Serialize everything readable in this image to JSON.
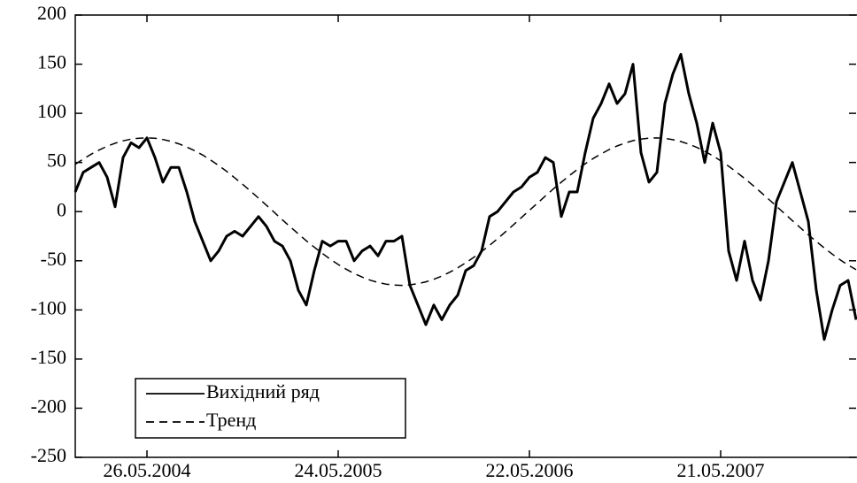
{
  "chart_data": {
    "type": "line",
    "categories": [
      null,
      null,
      null,
      null,
      null,
      null,
      null,
      null,
      null,
      "26.05.2004",
      null,
      null,
      null,
      null,
      null,
      null,
      null,
      null,
      null,
      null,
      null,
      null,
      null,
      null,
      null,
      null,
      null,
      null,
      null,
      null,
      null,
      null,
      null,
      "24.05.2005",
      null,
      null,
      null,
      null,
      null,
      null,
      null,
      null,
      null,
      null,
      null,
      null,
      null,
      null,
      null,
      null,
      null,
      null,
      null,
      null,
      null,
      null,
      null,
      "22.05.2006",
      null,
      null,
      null,
      null,
      null,
      null,
      null,
      null,
      null,
      null,
      null,
      null,
      null,
      null,
      null,
      null,
      null,
      null,
      null,
      null,
      null,
      null,
      null,
      "21.05.2007",
      null,
      null,
      null,
      null,
      null,
      null,
      null,
      null,
      null,
      null,
      null,
      null,
      null,
      null,
      null,
      null,
      null
    ],
    "series": [
      {
        "name": "Вихідний ряд",
        "color": "#000000",
        "style": "solid",
        "values": [
          20,
          40,
          45,
          50,
          35,
          5,
          55,
          70,
          65,
          75,
          55,
          30,
          45,
          45,
          20,
          -10,
          -30,
          -50,
          -40,
          -25,
          -20,
          -25,
          -15,
          -5,
          -15,
          -30,
          -35,
          -50,
          -80,
          -95,
          -60,
          -30,
          -35,
          -30,
          -30,
          -50,
          -40,
          -35,
          -45,
          -30,
          -30,
          -25,
          -75,
          -95,
          -115,
          -95,
          -110,
          -95,
          -85,
          -60,
          -55,
          -40,
          -5,
          0,
          10,
          20,
          25,
          35,
          40,
          55,
          50,
          -5,
          20,
          20,
          60,
          95,
          110,
          130,
          110,
          120,
          150,
          60,
          30,
          40,
          110,
          140,
          160,
          120,
          90,
          50,
          90,
          60,
          -40,
          -70,
          -30,
          -70,
          -90,
          -50,
          10,
          30,
          50,
          20,
          -10,
          -80,
          -130,
          -100,
          -75,
          -70,
          -110
        ]
      },
      {
        "name": "Тренд",
        "color": "#000000",
        "style": "dashed",
        "values": [
          48.1,
          53.5,
          58.4,
          62.7,
          66.5,
          69.6,
          72.0,
          73.7,
          74.7,
          75.0,
          74.6,
          73.4,
          71.5,
          69.0,
          65.7,
          61.9,
          57.5,
          52.4,
          46.9,
          41.0,
          34.5,
          27.8,
          20.9,
          13.7,
          6.4,
          -0.9,
          -8.4,
          -15.6,
          -22.7,
          -29.7,
          -36.2,
          -42.5,
          -48.4,
          -53.8,
          -58.6,
          -63.0,
          -66.6,
          -69.7,
          -72.1,
          -73.8,
          -74.7,
          -75.0,
          -74.5,
          -73.3,
          -71.4,
          -68.8,
          -65.6,
          -61.6,
          -57.2,
          -52.1,
          -46.6,
          -40.6,
          -34.3,
          -27.5,
          -20.5,
          -13.4,
          -6.0,
          1.3,
          8.6,
          15.9,
          23.1,
          29.9,
          36.6,
          42.8,
          48.7,
          54.0,
          58.8,
          63.1,
          66.8,
          69.8,
          72.2,
          73.8,
          74.8,
          75.0,
          74.5,
          73.2,
          71.3,
          68.6,
          65.4,
          61.4,
          56.9,
          51.8,
          46.2,
          40.2,
          33.8,
          27.0,
          20.0,
          12.8,
          5.5,
          -1.9,
          -9.2,
          -16.4,
          -23.6,
          -30.4,
          -37.0,
          -43.2,
          -49.0,
          -54.3,
          -59.1
        ]
      }
    ],
    "ylim": [
      -250,
      200
    ],
    "yticks": [
      -250,
      -200,
      -150,
      -100,
      -50,
      0,
      50,
      100,
      150,
      200
    ],
    "legend": "lower left"
  }
}
